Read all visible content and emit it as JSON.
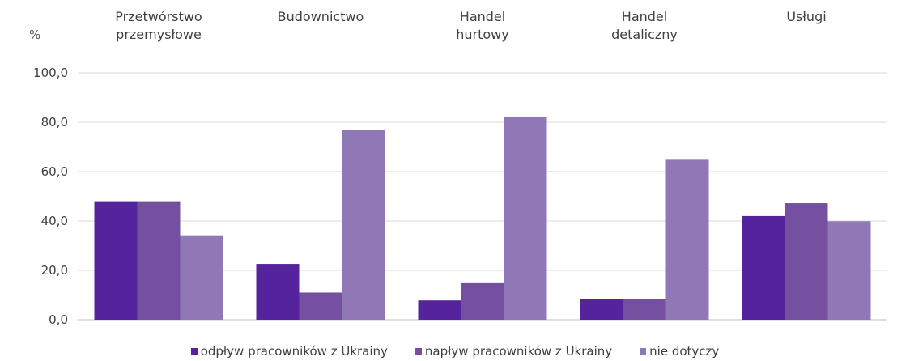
{
  "chart_data": {
    "type": "bar",
    "unit": "%",
    "categories": [
      "Przetwórstwo\nprzemysłowe",
      "Budownictwo",
      "Handel\nhurtowy",
      "Handel\ndetaliczny",
      "Usługi"
    ],
    "series": [
      {
        "name": "odpływ pracowników z Ukrainy",
        "color": "#55239b",
        "values": [
          48.0,
          22.6,
          7.8,
          8.5,
          42.0
        ]
      },
      {
        "name": "napływ pracowników z Ukrainy",
        "color": "#7550a0",
        "values": [
          48.0,
          11.0,
          14.8,
          8.5,
          47.2
        ]
      },
      {
        "name": "nie dotyczy",
        "color": "#9077b5",
        "values": [
          34.2,
          76.9,
          82.2,
          64.8,
          39.9
        ]
      }
    ],
    "ylim": [
      0,
      100
    ],
    "yticks": [
      "0,0",
      "20,0",
      "40,0",
      "60,0",
      "80,0",
      "100,0"
    ],
    "grid": true,
    "legend": "bottom"
  }
}
